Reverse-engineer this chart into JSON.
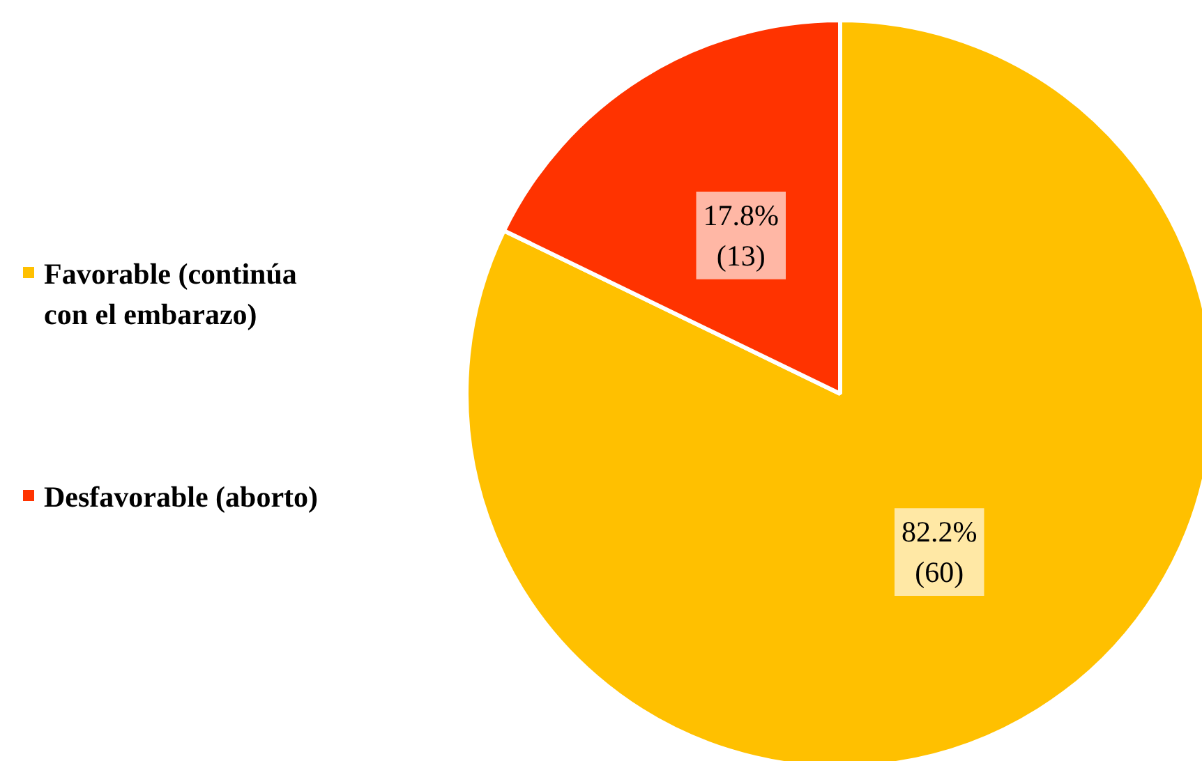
{
  "chart_data": {
    "type": "pie",
    "categories": [
      "Favorable (continúa con el embarazo)",
      "Desfavorable (aborto)"
    ],
    "values": [
      60,
      13
    ],
    "colors": [
      "#ffc000",
      "#ff3300"
    ],
    "value_labels": [
      "82.2% (60)",
      "17.8% (13)"
    ],
    "legend": "left"
  }
}
